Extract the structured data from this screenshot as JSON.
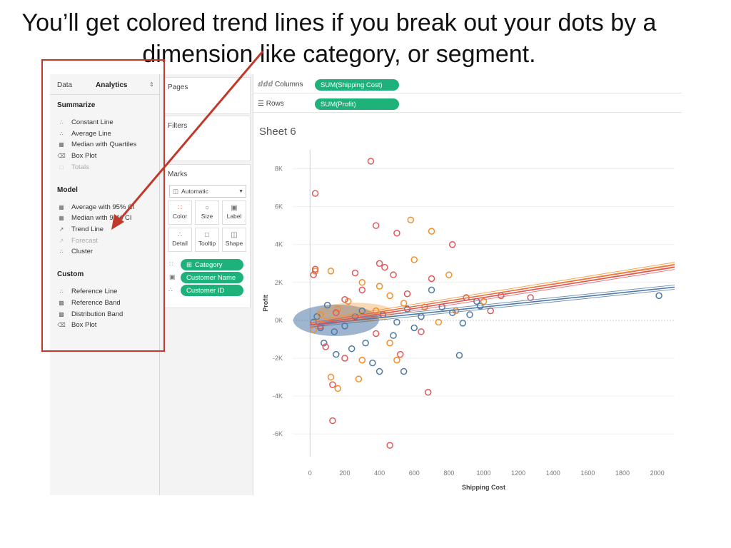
{
  "slide": {
    "title": "You’ll get colored trend lines if you break out your dots by a dimension like category, or segment."
  },
  "left_pane": {
    "tabs": [
      {
        "label": "Data"
      },
      {
        "label": "Analytics"
      }
    ],
    "sections": {
      "summarize": {
        "label": "Summarize",
        "items": [
          {
            "label": "Constant Line",
            "icon": "constant-line-icon"
          },
          {
            "label": "Average Line",
            "icon": "average-line-icon"
          },
          {
            "label": "Median with Quartiles",
            "icon": "median-quartiles-icon"
          },
          {
            "label": "Box Plot",
            "icon": "box-plot-icon"
          },
          {
            "label": "Totals",
            "icon": "totals-icon",
            "disabled": true
          }
        ]
      },
      "model": {
        "label": "Model",
        "items": [
          {
            "label": "Average with 95% CI",
            "icon": "average-ci-icon"
          },
          {
            "label": "Median with 95% CI",
            "icon": "median-ci-icon"
          },
          {
            "label": "Trend Line",
            "icon": "trend-line-icon"
          },
          {
            "label": "Forecast",
            "icon": "forecast-icon",
            "disabled": true
          },
          {
            "label": "Cluster",
            "icon": "cluster-icon"
          }
        ]
      },
      "custom": {
        "label": "Custom",
        "items": [
          {
            "label": "Reference Line",
            "icon": "reference-line-icon"
          },
          {
            "label": "Reference Band",
            "icon": "reference-band-icon"
          },
          {
            "label": "Distribution Band",
            "icon": "distribution-band-icon"
          },
          {
            "label": "Box Plot",
            "icon": "box-plot-icon"
          }
        ]
      }
    }
  },
  "shelves": {
    "pages": "Pages",
    "filters": "Filters",
    "marks": "Marks",
    "mark_type": "Automatic",
    "mark_buttons": [
      "Color",
      "Size",
      "Label",
      "Detail",
      "Tooltip",
      "Shape"
    ],
    "mark_pills": [
      "Category",
      "Customer Name",
      "Customer ID"
    ],
    "columns_label": "Columns",
    "rows_label": "Rows",
    "columns_pill": "SUM(Shipping Cost)",
    "rows_pill": "SUM(Profit)"
  },
  "sheet_title": "Sheet 6",
  "colors": {
    "pill": "#1fb17a",
    "blue": "#4e79a7",
    "orange": "#f28e2b",
    "red": "#e15759",
    "annotation": "#c0392b"
  },
  "chart_data": {
    "type": "scatter",
    "xlabel": "Shipping Cost",
    "ylabel": "Profit",
    "xlim": [
      -100,
      2100
    ],
    "ylim": [
      -7200,
      9000
    ],
    "x_ticks": [
      0,
      200,
      400,
      600,
      800,
      1000,
      1200,
      1400,
      1600,
      1800,
      2000
    ],
    "y_ticks": [
      -6000,
      -4000,
      -2000,
      0,
      2000,
      4000,
      6000,
      8000
    ],
    "x_tick_labels": [
      "0",
      "200",
      "400",
      "600",
      "800",
      "1000",
      "1200",
      "1400",
      "1600",
      "1800",
      "2000"
    ],
    "y_tick_labels": [
      "-6K",
      "-4K",
      "-2K",
      "0K",
      "2K",
      "4K",
      "6K",
      "8K"
    ],
    "grid": true,
    "marker": "open-circle",
    "series": [
      {
        "color": "#4e79a7",
        "points": [
          [
            2010,
            1300
          ],
          [
            960,
            1000
          ],
          [
            980,
            750
          ],
          [
            880,
            -150
          ],
          [
            860,
            -1850
          ],
          [
            540,
            -2700
          ],
          [
            400,
            -2700
          ],
          [
            360,
            -2250
          ],
          [
            150,
            -1800
          ],
          [
            240,
            -1500
          ],
          [
            80,
            -1200
          ],
          [
            320,
            -1200
          ],
          [
            480,
            -800
          ],
          [
            700,
            1600
          ],
          [
            600,
            -400
          ],
          [
            820,
            400
          ],
          [
            920,
            300
          ],
          [
            760,
            700
          ],
          [
            100,
            800
          ],
          [
            60,
            -400
          ],
          [
            140,
            -600
          ],
          [
            200,
            -300
          ],
          [
            260,
            200
          ],
          [
            300,
            500
          ],
          [
            420,
            300
          ],
          [
            500,
            -100
          ],
          [
            640,
            200
          ],
          [
            560,
            600
          ],
          [
            40,
            200
          ],
          [
            20,
            -100
          ]
        ],
        "trend": [
          [
            0,
            -250
          ],
          [
            2100,
            1750
          ]
        ]
      },
      {
        "color": "#f28e2b",
        "points": [
          [
            580,
            5300
          ],
          [
            700,
            4700
          ],
          [
            600,
            3200
          ],
          [
            800,
            2400
          ],
          [
            1000,
            1000
          ],
          [
            300,
            -2100
          ],
          [
            160,
            -3600
          ],
          [
            120,
            -3000
          ],
          [
            500,
            -2100
          ],
          [
            280,
            -3100
          ],
          [
            30,
            2600
          ],
          [
            120,
            2600
          ],
          [
            300,
            2000
          ],
          [
            400,
            1800
          ],
          [
            460,
            1300
          ],
          [
            220,
            1000
          ],
          [
            160,
            600
          ],
          [
            60,
            300
          ],
          [
            380,
            500
          ],
          [
            540,
            900
          ],
          [
            660,
            700
          ],
          [
            740,
            -100
          ],
          [
            840,
            500
          ],
          [
            460,
            -1200
          ],
          [
            20,
            -500
          ]
        ],
        "trend": [
          [
            0,
            -150
          ],
          [
            2100,
            2950
          ]
        ]
      },
      {
        "color": "#e15759",
        "points": [
          [
            350,
            8400
          ],
          [
            30,
            6700
          ],
          [
            380,
            5000
          ],
          [
            500,
            4600
          ],
          [
            820,
            4000
          ],
          [
            400,
            3000
          ],
          [
            430,
            2800
          ],
          [
            30,
            2700
          ],
          [
            20,
            2400
          ],
          [
            260,
            2500
          ],
          [
            480,
            2400
          ],
          [
            700,
            2200
          ],
          [
            1270,
            1200
          ],
          [
            1100,
            1300
          ],
          [
            1040,
            500
          ],
          [
            900,
            1200
          ],
          [
            90,
            -1400
          ],
          [
            130,
            -3400
          ],
          [
            130,
            -5300
          ],
          [
            460,
            -6600
          ],
          [
            680,
            -3800
          ],
          [
            520,
            -1800
          ],
          [
            200,
            -2000
          ],
          [
            380,
            -700
          ],
          [
            300,
            1600
          ],
          [
            200,
            1100
          ],
          [
            560,
            1400
          ],
          [
            640,
            -600
          ],
          [
            60,
            -300
          ],
          [
            150,
            400
          ]
        ],
        "trend": [
          [
            0,
            -250
          ],
          [
            2100,
            2800
          ]
        ]
      }
    ]
  }
}
